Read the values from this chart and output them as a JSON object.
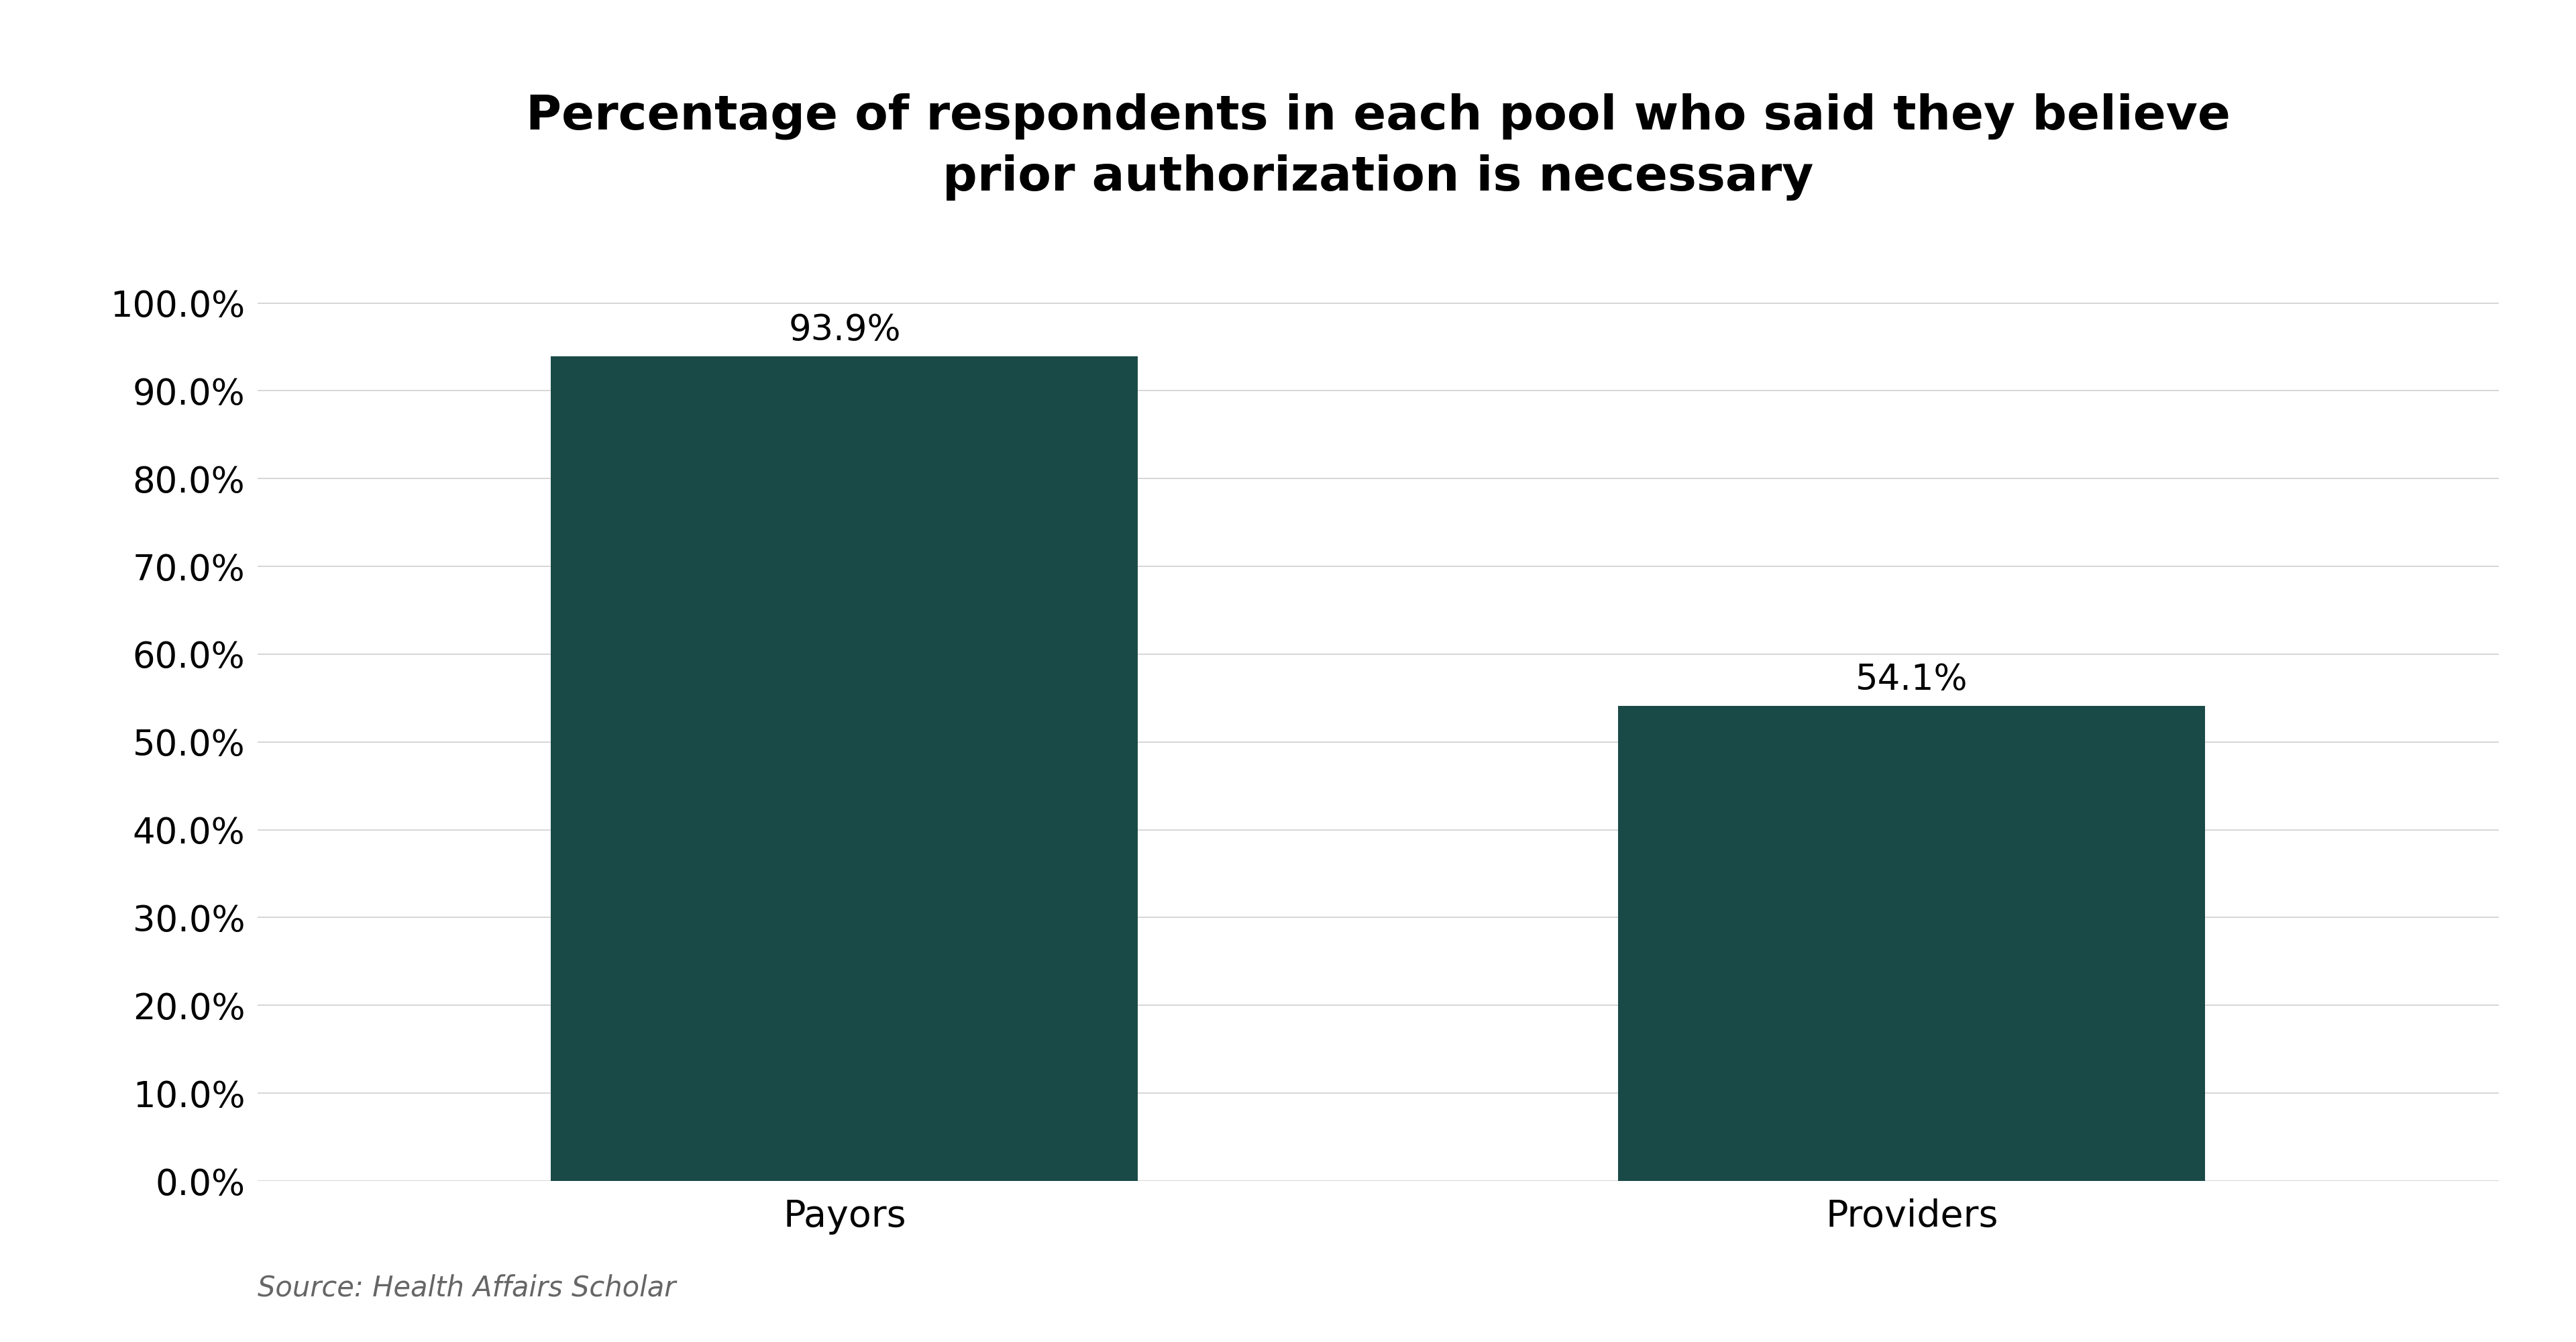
{
  "title_line1": "Percentage of respondents in each pool who said they believe",
  "title_line2": "prior authorization is necessary",
  "categories": [
    "Payors",
    "Providers"
  ],
  "values": [
    93.9,
    54.1
  ],
  "bar_color": "#1a4a47",
  "bar_labels": [
    "93.9%",
    "54.1%"
  ],
  "yticks": [
    0,
    10,
    20,
    30,
    40,
    50,
    60,
    70,
    80,
    90,
    100
  ],
  "ytick_labels": [
    "0.0%",
    "10.0%",
    "20.0%",
    "30.0%",
    "40.0%",
    "50.0%",
    "60.0%",
    "70.0%",
    "80.0%",
    "90.0%",
    "100.0%"
  ],
  "ylim": [
    0,
    107
  ],
  "source_text": "Source: Health Affairs Scholar",
  "background_color": "#ffffff",
  "grid_color": "#d0d0d0",
  "title_fontsize": 52,
  "tick_fontsize": 38,
  "bar_label_fontsize": 38,
  "category_fontsize": 40,
  "source_fontsize": 30,
  "bar_width": 0.55,
  "xlim_left": -0.55,
  "xlim_right": 1.55
}
